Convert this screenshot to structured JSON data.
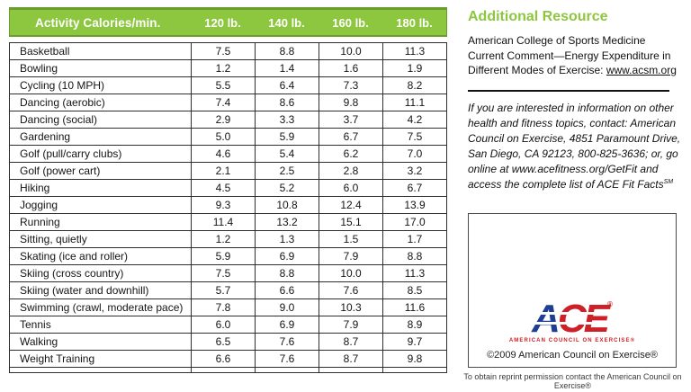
{
  "table": {
    "header": {
      "activity": "Activity Calories/min.",
      "weights": [
        "120 lb.",
        "140 lb.",
        "160 lb.",
        "180 lb."
      ]
    },
    "rows": [
      {
        "activity": "Basketball",
        "values": [
          "7.5",
          "8.8",
          "10.0",
          "11.3"
        ]
      },
      {
        "activity": "Bowling",
        "values": [
          "1.2",
          "1.4",
          "1.6",
          "1.9"
        ]
      },
      {
        "activity": "Cycling (10 MPH)",
        "values": [
          "5.5",
          "6.4",
          "7.3",
          "8.2"
        ]
      },
      {
        "activity": "Dancing (aerobic)",
        "values": [
          "7.4",
          "8.6",
          "9.8",
          "11.1"
        ]
      },
      {
        "activity": "Dancing (social)",
        "values": [
          "2.9",
          "3.3",
          "3.7",
          "4.2"
        ]
      },
      {
        "activity": "Gardening",
        "values": [
          "5.0",
          "5.9",
          "6.7",
          "7.5"
        ]
      },
      {
        "activity": "Golf (pull/carry clubs)",
        "values": [
          "4.6",
          "5.4",
          "6.2",
          "7.0"
        ]
      },
      {
        "activity": "Golf (power cart)",
        "values": [
          "2.1",
          "2.5",
          "2.8",
          "3.2"
        ]
      },
      {
        "activity": "Hiking",
        "values": [
          "4.5",
          "5.2",
          "6.0",
          "6.7"
        ]
      },
      {
        "activity": "Jogging",
        "values": [
          "9.3",
          "10.8",
          "12.4",
          "13.9"
        ]
      },
      {
        "activity": "Running",
        "values": [
          "11.4",
          "13.2",
          "15.1",
          "17.0"
        ]
      },
      {
        "activity": "Sitting, quietly",
        "values": [
          "1.2",
          "1.3",
          "1.5",
          "1.7"
        ]
      },
      {
        "activity": "Skating (ice and roller)",
        "values": [
          "5.9",
          "6.9",
          "7.9",
          "8.8"
        ]
      },
      {
        "activity": "Skiing (cross country)",
        "values": [
          "7.5",
          "8.8",
          "10.0",
          "11.3"
        ]
      },
      {
        "activity": "Skiing (water and downhill)",
        "values": [
          "5.7",
          "6.6",
          "7.6",
          "8.5"
        ]
      },
      {
        "activity": "Swimming (crawl, moderate pace)",
        "values": [
          "7.8",
          "9.0",
          "10.3",
          "11.6"
        ]
      },
      {
        "activity": "Tennis",
        "values": [
          "6.0",
          "6.9",
          "7.9",
          "8.9"
        ]
      },
      {
        "activity": "Walking",
        "values": [
          "6.5",
          "7.6",
          "8.7",
          "9.7"
        ]
      },
      {
        "activity": "Weight Training",
        "values": [
          "6.6",
          "7.6",
          "8.7",
          "9.8"
        ]
      }
    ]
  },
  "sidebar": {
    "title": "Additional Resource",
    "resource_text": "American College of Sports Medicine Current Comment—Energy Expenditure in Different Modes of Exercise: ",
    "resource_link": "www.acsm.org",
    "contact_text": "If you are interested in information on other health and fitness topics, contact: American Council on Exercise, 4851 Paramount Drive, San Diego, CA 92123, 800-825-3636; or, go online at www.acefitness.org/GetFit and access the complete list of ACE Fit Facts",
    "contact_trademark": "SM",
    "logo": {
      "letter_a": "A",
      "letters_ce": "CE",
      "registered": "®",
      "caption": "AMERICAN COUNCIL ON EXERCISE®"
    },
    "copyright": "©2009 American Council on Exercise®",
    "reprint_note": "To obtain reprint permission contact the American Council on Exercise®"
  },
  "colors": {
    "brand_green": "#8dc63f",
    "green_border": "#6b9c2e",
    "table_border": "#2e2e2e",
    "ace_blue": "#1f3f97",
    "ace_red": "#cd2027"
  }
}
